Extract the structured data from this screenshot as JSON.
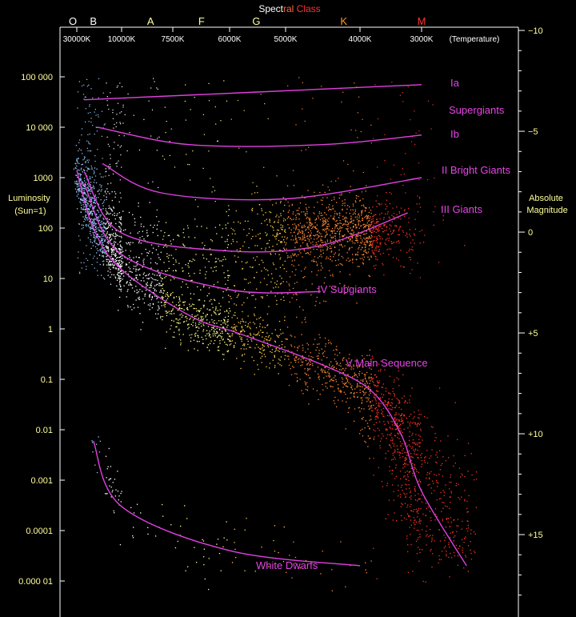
{
  "chart_data": {
    "type": "scatter",
    "title_parts": [
      {
        "text": "Spect",
        "color": "#ffffff"
      },
      {
        "text": "ral",
        "color": "#ff6644"
      },
      {
        "text": " Class",
        "color": "#ff3333"
      }
    ],
    "spectral_classes": [
      {
        "label": "O",
        "temperature_K": 40000,
        "color": "#ffffff"
      },
      {
        "label": "B",
        "temperature_K": 20000,
        "color": "#ffffff"
      },
      {
        "label": "A",
        "temperature_K": 8500,
        "color": "#ffffaa"
      },
      {
        "label": "F",
        "temperature_K": 6700,
        "color": "#ffffaa"
      },
      {
        "label": "G",
        "temperature_K": 5500,
        "color": "#ffffaa"
      },
      {
        "label": "K",
        "temperature_K": 4200,
        "color": "#ff9922"
      },
      {
        "label": "M",
        "temperature_K": 3000,
        "color": "#ff3333"
      }
    ],
    "temperature_ticks": [
      {
        "label": "30000K",
        "value": 30000
      },
      {
        "label": "10000K",
        "value": 10000
      },
      {
        "label": "7500K",
        "value": 7500
      },
      {
        "label": "6000K",
        "value": 6000
      },
      {
        "label": "5000K",
        "value": 5000
      },
      {
        "label": "4000K",
        "value": 4000
      },
      {
        "label": "3000K",
        "value": 3000
      }
    ],
    "temperature_axis_note": "(Temperature)",
    "ylabel_left": [
      "Luminosity",
      "(Sun=1)"
    ],
    "ylabel_right": [
      "Absolute",
      "Magnitude"
    ],
    "luminosity_ticks": [
      {
        "label": "100 000",
        "value": 100000
      },
      {
        "label": "10 000",
        "value": 10000
      },
      {
        "label": "1000",
        "value": 1000
      },
      {
        "label": "100",
        "value": 100
      },
      {
        "label": "10",
        "value": 10
      },
      {
        "label": "1",
        "value": 1
      },
      {
        "label": "0.1",
        "value": 0.1
      },
      {
        "label": "0.01",
        "value": 0.01
      },
      {
        "label": "0.001",
        "value": 0.001
      },
      {
        "label": "0.0001",
        "value": 0.0001
      },
      {
        "label": "0.000 01",
        "value": 1e-05
      }
    ],
    "magnitude_ticks": [
      {
        "label": "−10",
        "value": -10
      },
      {
        "label": "−5",
        "value": -5
      },
      {
        "label": "0",
        "value": 0
      },
      {
        "label": "+5",
        "value": 5
      },
      {
        "label": "+10",
        "value": 10
      },
      {
        "label": "+15",
        "value": 15
      }
    ],
    "x_scale": "log, decreasing to the right",
    "y_scale": "log",
    "xlim_K": [
      40000,
      2700
    ],
    "ylim_luminosity": [
      2e-06,
      1000000
    ],
    "branches": [
      {
        "label": "Ia",
        "points": [
          [
            25000,
            35000
          ],
          [
            3000,
            70000
          ]
        ]
      },
      {
        "label": "Ib",
        "points": [
          [
            18000,
            10000
          ],
          [
            7000,
            4500
          ],
          [
            4500,
            4500
          ],
          [
            3000,
            7000
          ]
        ]
      },
      {
        "label": "II Bright Giants",
        "points": [
          [
            16000,
            1900
          ],
          [
            8000,
            500
          ],
          [
            5000,
            380
          ],
          [
            3000,
            1000
          ]
        ]
      },
      {
        "label": "III   Giants",
        "points": [
          [
            25000,
            1300
          ],
          [
            10000,
            80
          ],
          [
            6000,
            35
          ],
          [
            4500,
            45
          ],
          [
            3200,
            200
          ]
        ]
      },
      {
        "label": "IV  Subgiants",
        "points": [
          [
            25000,
            750
          ],
          [
            10000,
            30
          ],
          [
            6000,
            6
          ],
          [
            4500,
            5.5
          ]
        ]
      },
      {
        "label": "V  Main Sequence",
        "points": [
          [
            30000,
            1400
          ],
          [
            20000,
            100
          ],
          [
            10000,
            15
          ],
          [
            7000,
            1.8
          ],
          [
            5800,
            0.8
          ],
          [
            4500,
            0.2
          ],
          [
            3800,
            0.06
          ],
          [
            3300,
            0.008
          ],
          [
            3000,
            0.0006
          ],
          [
            2750,
            2e-05
          ]
        ]
      },
      {
        "label": "White Dwarfs",
        "points": [
          [
            20000,
            0.006
          ],
          [
            10000,
            0.0003
          ],
          [
            6000,
            4e-05
          ],
          [
            4000,
            2e-05
          ]
        ]
      }
    ],
    "branch_group_labels": [
      "Supergiants"
    ],
    "point_colors": [
      "#99ccff",
      "#ffffff",
      "#ffff88",
      "#ffcc44",
      "#ff8833",
      "#ff3322"
    ],
    "grid": false,
    "legend": "none"
  }
}
